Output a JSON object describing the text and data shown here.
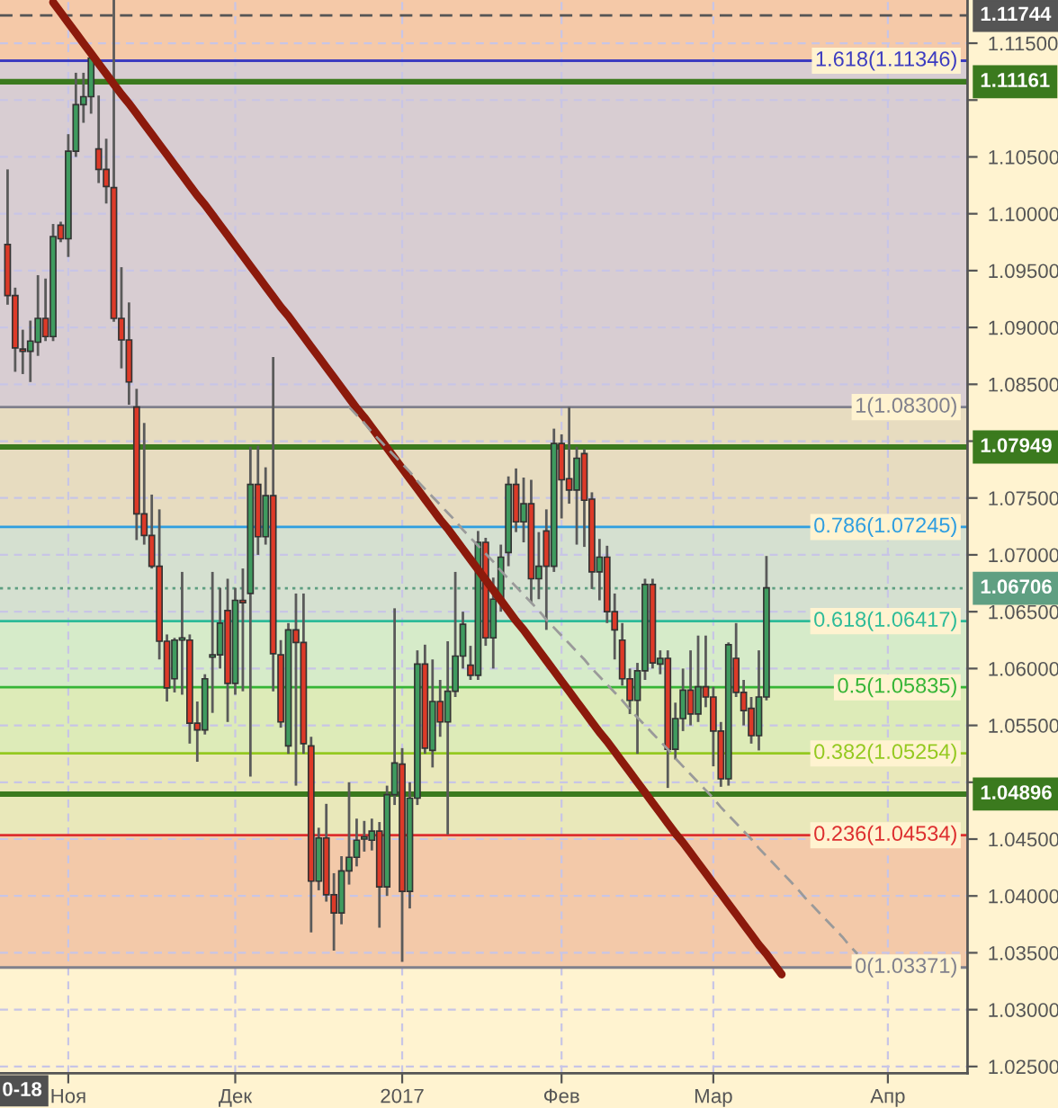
{
  "chart_data": {
    "type": "candlestick",
    "categories": [
      null,
      null,
      null,
      null,
      null,
      null,
      null,
      null,
      "Ноя",
      null,
      null,
      null,
      null,
      null,
      null,
      null,
      null,
      null,
      null,
      null,
      null,
      null,
      null,
      null,
      null,
      null,
      null,
      null,
      null,
      null,
      "Дек",
      null,
      null,
      null,
      null,
      null,
      null,
      null,
      null,
      null,
      null,
      null,
      null,
      null,
      null,
      null,
      null,
      null,
      null,
      null,
      null,
      null,
      "2017",
      null,
      null,
      null,
      null,
      null,
      null,
      null,
      null,
      null,
      null,
      null,
      null,
      null,
      null,
      null,
      null,
      null,
      null,
      null,
      null,
      "Фев",
      null,
      null,
      null,
      null,
      null,
      null,
      null,
      null,
      null,
      null,
      null,
      null,
      null,
      null,
      null,
      null,
      null,
      null,
      null,
      "Мар",
      null,
      null,
      null,
      null,
      null,
      null,
      null,
      null,
      null,
      null,
      null,
      null,
      null,
      null,
      null,
      null,
      null,
      null,
      null,
      null,
      null,
      null,
      "Апр",
      null,
      null,
      null,
      null,
      null,
      null,
      null,
      null,
      null,
      null
    ],
    "ohlc": [
      [
        1.0973,
        1.1039,
        1.092,
        1.0928
      ],
      [
        1.0928,
        1.0935,
        1.0861,
        1.0882
      ],
      [
        1.0881,
        1.0898,
        1.0859,
        1.0879
      ],
      [
        1.0879,
        1.0906,
        1.0852,
        1.0888
      ],
      [
        1.0887,
        1.0946,
        1.0875,
        1.0908
      ],
      [
        1.0908,
        1.0943,
        1.0888,
        1.0892
      ],
      [
        1.0892,
        1.0991,
        1.0888,
        1.098
      ],
      [
        1.099,
        1.0993,
        1.0975,
        1.0978
      ],
      [
        1.0978,
        1.107,
        1.0962,
        1.1055
      ],
      [
        1.1055,
        1.1124,
        1.105,
        1.1096
      ],
      [
        1.1096,
        1.1124,
        1.108,
        1.1103
      ],
      [
        1.1103,
        1.1138,
        1.1088,
        1.1137
      ],
      [
        1.1057,
        1.1104,
        1.1027,
        1.1039
      ],
      [
        1.1039,
        1.1066,
        1.1009,
        1.1024
      ],
      [
        1.1023,
        1.1188,
        1.0905,
        1.0908
      ],
      [
        1.0908,
        1.0953,
        1.0864,
        1.0889
      ],
      [
        1.0889,
        1.0922,
        1.0832,
        1.0852
      ],
      [
        1.083,
        1.0846,
        1.0713,
        1.0736
      ],
      [
        1.0736,
        1.0816,
        1.0709,
        1.0717
      ],
      [
        1.0717,
        1.0753,
        1.0688,
        1.069
      ],
      [
        1.069,
        1.074,
        1.0608,
        1.0624
      ],
      [
        1.0624,
        1.063,
        1.0571,
        1.0583
      ],
      [
        1.0591,
        1.0627,
        1.0579,
        1.0625
      ],
      [
        1.0625,
        1.0685,
        1.0577,
        1.0627
      ],
      [
        1.0625,
        1.063,
        1.0534,
        1.0552
      ],
      [
        1.0552,
        1.0571,
        1.0518,
        1.0546
      ],
      [
        1.0546,
        1.0595,
        1.0542,
        1.0591
      ],
      [
        1.061,
        1.0685,
        1.0561,
        1.0612
      ],
      [
        1.0612,
        1.0671,
        1.06,
        1.064
      ],
      [
        1.0651,
        1.0679,
        1.0553,
        1.0587
      ],
      [
        1.0587,
        1.0671,
        1.0577,
        1.066
      ],
      [
        1.066,
        1.0688,
        1.058,
        1.0658
      ],
      [
        1.0666,
        1.0795,
        1.0505,
        1.0762
      ],
      [
        1.0762,
        1.0796,
        1.07,
        1.0716
      ],
      [
        1.0716,
        1.0777,
        1.0709,
        1.0752
      ],
      [
        1.0752,
        1.0874,
        1.058,
        1.0613
      ],
      [
        1.0612,
        1.0625,
        1.0548,
        1.0553
      ],
      [
        1.0532,
        1.064,
        1.0525,
        1.0634
      ],
      [
        1.0634,
        1.0666,
        1.0497,
        1.0623
      ],
      [
        1.0623,
        1.0666,
        1.0525,
        1.0534
      ],
      [
        1.0532,
        1.054,
        1.0368,
        1.0413
      ],
      [
        1.0413,
        1.046,
        1.0405,
        1.0451
      ],
      [
        1.0451,
        1.0481,
        1.0395,
        1.0401
      ],
      [
        1.0401,
        1.042,
        1.0352,
        1.0385
      ],
      [
        1.0385,
        1.0435,
        1.0375,
        1.0422
      ],
      [
        1.0422,
        1.05,
        1.041,
        1.0434
      ],
      [
        1.0434,
        1.0468,
        1.0426,
        1.0449
      ],
      [
        1.045,
        1.0466,
        1.0439,
        1.0452
      ],
      [
        1.0449,
        1.0468,
        1.044,
        1.0457
      ],
      [
        1.0457,
        1.0465,
        1.0372,
        1.0408
      ],
      [
        1.0408,
        1.0497,
        1.04,
        1.0489
      ],
      [
        1.0489,
        1.0653,
        1.048,
        1.0517
      ],
      [
        1.0516,
        1.053,
        1.0342,
        1.0404
      ],
      [
        1.0404,
        1.05,
        1.0389,
        1.0486
      ],
      [
        1.0486,
        1.0616,
        1.048,
        1.0604
      ],
      [
        1.0604,
        1.0621,
        1.0525,
        1.053
      ],
      [
        1.0528,
        1.0608,
        1.0513,
        1.0571
      ],
      [
        1.0571,
        1.059,
        1.054,
        1.0553
      ],
      [
        1.0553,
        1.0624,
        1.0454,
        1.058
      ],
      [
        1.058,
        1.0685,
        1.0575,
        1.0611
      ],
      [
        1.0611,
        1.065,
        1.06,
        1.0639
      ],
      [
        1.0603,
        1.062,
        1.059,
        1.0594
      ],
      [
        1.0594,
        1.0721,
        1.059,
        1.0711
      ],
      [
        1.0711,
        1.0715,
        1.062,
        1.0627
      ],
      [
        1.0627,
        1.068,
        1.06,
        1.0661
      ],
      [
        1.0661,
        1.0709,
        1.065,
        1.0698
      ],
      [
        1.0702,
        1.0769,
        1.069,
        1.0762
      ],
      [
        1.0762,
        1.0776,
        1.072,
        1.0729
      ],
      [
        1.0729,
        1.0768,
        1.0711,
        1.0745
      ],
      [
        1.0745,
        1.0766,
        1.0658,
        1.0679
      ],
      [
        1.0679,
        1.072,
        1.0661,
        1.069
      ],
      [
        1.0721,
        1.074,
        1.0634,
        1.069
      ],
      [
        1.069,
        1.0811,
        1.0685,
        1.0798
      ],
      [
        1.0798,
        1.0806,
        1.0732,
        1.0766
      ],
      [
        1.0767,
        1.083,
        1.0745,
        1.0757
      ],
      [
        1.0757,
        1.0795,
        1.0709,
        1.0785
      ],
      [
        1.0789,
        1.0793,
        1.0707,
        1.0748
      ],
      [
        1.0749,
        1.0755,
        1.067,
        1.0685
      ],
      [
        1.0685,
        1.0714,
        1.066,
        1.0698
      ],
      [
        1.0698,
        1.0708,
        1.064,
        1.065
      ],
      [
        1.065,
        1.0666,
        1.0608,
        1.0634
      ],
      [
        1.0625,
        1.064,
        1.0585,
        1.0591
      ],
      [
        1.0591,
        1.06,
        1.056,
        1.0572
      ],
      [
        1.0572,
        1.0605,
        1.0525,
        1.0598
      ],
      [
        1.0598,
        1.0679,
        1.059,
        1.0674
      ],
      [
        1.0674,
        1.0679,
        1.06,
        1.0605
      ],
      [
        1.0604,
        1.0616,
        1.0595,
        1.0609
      ],
      [
        1.0609,
        1.0616,
        1.0495,
        1.0529
      ],
      [
        1.0529,
        1.057,
        1.052,
        1.0556
      ],
      [
        1.0556,
        1.06,
        1.0545,
        1.0581
      ],
      [
        1.0581,
        1.0616,
        1.055,
        1.056
      ],
      [
        1.056,
        1.0629,
        1.0553,
        1.0584
      ],
      [
        1.0584,
        1.0629,
        1.0566,
        1.0575
      ],
      [
        1.0575,
        1.0584,
        1.0514,
        1.0545
      ],
      [
        1.0545,
        1.0553,
        1.0496,
        1.0503
      ],
      [
        1.0503,
        1.0623,
        1.0497,
        1.0621
      ],
      [
        1.0609,
        1.064,
        1.0575,
        1.0579
      ],
      [
        1.0579,
        1.059,
        1.055,
        1.0563
      ],
      [
        1.0565,
        1.0575,
        1.0534,
        1.0541
      ],
      [
        1.0541,
        1.0616,
        1.0528,
        1.0575
      ],
      [
        1.0575,
        1.0699,
        1.0572,
        1.0671
      ],
      null,
      null,
      null,
      null,
      null,
      null,
      null,
      null,
      null,
      null,
      null,
      null,
      null,
      null,
      null,
      null,
      null,
      null,
      null,
      null,
      null,
      null,
      null,
      null,
      null,
      null
    ],
    "colors": [
      "#dd3a28",
      "#dd3a28",
      "#dd3a28",
      "#3f9b5f",
      "#3f9b5f",
      "#dd3a28",
      "#3f9b5f",
      "#dd3a28",
      "#3f9b5f",
      "#3f9b5f",
      "#3f9b5f",
      "#3f9b5f",
      "#dd3a28",
      "#dd3a28",
      "#dd3a28",
      "#dd3a28",
      "#dd3a28",
      "#dd3a28",
      "#dd3a28",
      "#dd3a28",
      "#dd3a28",
      "#dd3a28",
      "#3f9b5f",
      "#3f9b5f",
      "#dd3a28",
      "#dd3a28",
      "#3f9b5f",
      "#3f9b5f",
      "#3f9b5f",
      "#dd3a28",
      "#3f9b5f",
      "#dd3a28",
      "#3f9b5f",
      "#dd3a28",
      "#3f9b5f",
      "#dd3a28",
      "#dd3a28",
      "#3f9b5f",
      "#dd3a28",
      "#dd3a28",
      "#dd3a28",
      "#3f9b5f",
      "#dd3a28",
      "#dd3a28",
      "#3f9b5f",
      "#3f9b5f",
      "#3f9b5f",
      "#3f9b5f",
      "#3f9b5f",
      "#dd3a28",
      "#3f9b5f",
      "#3f9b5f",
      "#dd3a28",
      "#3f9b5f",
      "#3f9b5f",
      "#dd3a28",
      "#3f9b5f",
      "#dd3a28",
      "#3f9b5f",
      "#3f9b5f",
      "#3f9b5f",
      "#dd3a28",
      "#3f9b5f",
      "#dd3a28",
      "#3f9b5f",
      "#3f9b5f",
      "#3f9b5f",
      "#dd3a28",
      "#3f9b5f",
      "#dd3a28",
      "#3f9b5f",
      "#dd3a28",
      "#3f9b5f",
      "#dd3a28",
      "#dd3a28",
      "#3f9b5f",
      "#dd3a28",
      "#dd3a28",
      "#3f9b5f",
      "#dd3a28",
      "#dd3a28",
      "#dd3a28",
      "#dd3a28",
      "#3f9b5f",
      "#3f9b5f",
      "#dd3a28",
      "#3f9b5f",
      "#dd3a28",
      "#3f9b5f",
      "#3f9b5f",
      "#dd3a28",
      "#3f9b5f",
      "#dd3a28",
      "#dd3a28",
      "#dd3a28",
      "#3f9b5f",
      "#dd3a28",
      "#dd3a28",
      "#dd3a28",
      "#3f9b5f",
      "#3f9b5f",
      null,
      null,
      null,
      null,
      null,
      null,
      null,
      null,
      null,
      null,
      null,
      null,
      null,
      null,
      null,
      null,
      null,
      null,
      null,
      null,
      null,
      null,
      null,
      null,
      null,
      null
    ],
    "series": [
      {
        "type": "line",
        "color": "#8c1a0c",
        "line_style": "solid",
        "values": [
          null,
          null,
          null,
          null,
          null,
          null,
          1.1186,
          1.1177,
          1.1168,
          1.1159,
          1.115,
          1.1141,
          1.1132,
          1.1123,
          1.1114,
          1.1105,
          1.1097,
          1.1088,
          1.1079,
          1.107,
          1.1061,
          1.1052,
          1.1043,
          1.1034,
          1.1025,
          1.1016,
          1.1008,
          1.0999,
          1.099,
          1.0981,
          1.0972,
          1.0963,
          1.0954,
          1.0945,
          1.0936,
          1.0927,
          1.0918,
          1.091,
          1.0901,
          1.0892,
          1.0883,
          1.0874,
          1.0865,
          1.0856,
          1.0847,
          1.0838,
          1.0829,
          1.0821,
          1.0812,
          1.0803,
          1.0794,
          1.0785,
          1.0776,
          1.0767,
          1.0758,
          1.0749,
          1.074,
          1.0731,
          1.0723,
          1.0714,
          1.0705,
          1.0696,
          1.0687,
          1.0678,
          1.0669,
          1.066,
          1.0651,
          1.0642,
          1.0634,
          1.0625,
          1.0616,
          1.0607,
          1.0598,
          1.0589,
          1.058,
          1.0571,
          1.0562,
          1.0553,
          1.0544,
          1.0536,
          1.0527,
          1.0518,
          1.0509,
          1.05,
          1.0491,
          1.0482,
          1.0473,
          1.0464,
          1.0455,
          1.0447,
          1.0438,
          1.0429,
          1.042,
          1.0411,
          1.0402,
          1.0393,
          1.0384,
          1.0375,
          1.0366,
          1.0357,
          1.0349,
          1.034,
          1.0331,
          null,
          null,
          null,
          null,
          null,
          null,
          null,
          null,
          null,
          null,
          null,
          null,
          null,
          null,
          null,
          null,
          null,
          null,
          null,
          null,
          null,
          null,
          null,
          null
        ]
      },
      {
        "type": "line",
        "color": "#9a9a9a",
        "line_style": "dashed",
        "values": [
          null,
          null,
          null,
          null,
          null,
          null,
          null,
          null,
          null,
          null,
          null,
          null,
          null,
          null,
          null,
          null,
          null,
          null,
          null,
          null,
          null,
          null,
          null,
          null,
          null,
          null,
          null,
          null,
          null,
          null,
          null,
          null,
          null,
          null,
          null,
          null,
          null,
          null,
          null,
          null,
          null,
          null,
          null,
          null,
          null,
          1.083,
          1.0823,
          1.0816,
          1.0808,
          1.0801,
          1.0794,
          1.0787,
          1.078,
          1.0773,
          1.0765,
          1.0758,
          1.0751,
          1.0744,
          1.0737,
          1.073,
          1.0722,
          1.0715,
          1.0708,
          1.0701,
          1.0694,
          1.0686,
          1.0679,
          1.0672,
          1.0665,
          1.0658,
          1.0651,
          1.0643,
          1.0636,
          1.0629,
          1.0622,
          1.0615,
          1.0608,
          1.06,
          1.0593,
          1.0586,
          1.0579,
          1.0572,
          1.0564,
          1.0557,
          1.055,
          1.0543,
          1.0536,
          1.0529,
          1.0521,
          1.0514,
          1.0507,
          1.05,
          1.0493,
          1.0486,
          1.0478,
          1.0471,
          1.0464,
          1.0457,
          1.045,
          1.0442,
          1.0435,
          1.0428,
          1.0421,
          1.0414,
          1.0407,
          1.0399,
          1.0392,
          1.0385,
          1.0378,
          1.0371,
          1.0364,
          1.0356,
          1.0349,
          null,
          null,
          null,
          null,
          null,
          null,
          null,
          null,
          null,
          null,
          null,
          null,
          null,
          null
        ]
      }
    ],
    "ylim": [
      1.0244,
      1.1188
    ],
    "yticks": [
      {
        "value": 1.025,
        "label": "1.02500"
      },
      {
        "value": 1.03,
        "label": "1.03000"
      },
      {
        "value": 1.035,
        "label": "1.03500"
      },
      {
        "value": 1.04,
        "label": "1.04000"
      },
      {
        "value": 1.045,
        "label": "1.04500"
      },
      {
        "value": 1.05,
        "label": null
      },
      {
        "value": 1.055,
        "label": "1.05500"
      },
      {
        "value": 1.06,
        "label": "1.06000"
      },
      {
        "value": 1.065,
        "label": "1.06500"
      },
      {
        "value": 1.07,
        "label": "1.07000"
      },
      {
        "value": 1.075,
        "label": "1.07500"
      },
      {
        "value": 1.08,
        "label": null
      },
      {
        "value": 1.085,
        "label": "1.08500"
      },
      {
        "value": 1.09,
        "label": "1.09000"
      },
      {
        "value": 1.095,
        "label": "1.09500"
      },
      {
        "value": 1.1,
        "label": "1.10000"
      },
      {
        "value": 1.105,
        "label": "1.10500"
      },
      {
        "value": 1.11,
        "label": null
      },
      {
        "value": 1.115,
        "label": "1.11500"
      }
    ],
    "grid": true,
    "bands": [
      {
        "axis": "y",
        "from": 1.11346,
        "to": 1.1188,
        "color": "#f5c9a8"
      },
      {
        "axis": "y",
        "from": 1.083,
        "to": 1.11346,
        "color": "#d8cdd2"
      },
      {
        "axis": "y",
        "from": 1.07245,
        "to": 1.083,
        "color": "#e7dcc0"
      },
      {
        "axis": "y",
        "from": 1.06417,
        "to": 1.07245,
        "color": "#d5e0d0"
      },
      {
        "axis": "y",
        "from": 1.05835,
        "to": 1.06417,
        "color": "#d6ebc9"
      },
      {
        "axis": "y",
        "from": 1.05254,
        "to": 1.05835,
        "color": "#ddebb8"
      },
      {
        "axis": "y",
        "from": 1.04534,
        "to": 1.05254,
        "color": "#e9e8ba"
      },
      {
        "axis": "y",
        "from": 1.03371,
        "to": 1.04534,
        "color": "#f3c9a9"
      }
    ],
    "ref_lines": [
      {
        "axis": "y",
        "value": 1.11346,
        "color": "#3c3cc0",
        "line_style": "solid"
      },
      {
        "axis": "y",
        "value": 1.083,
        "color": "#80808c",
        "line_style": "solid"
      },
      {
        "axis": "y",
        "value": 1.07245,
        "color": "#2f9ee0",
        "line_style": "solid"
      },
      {
        "axis": "y",
        "value": 1.06417,
        "color": "#2dbb98",
        "line_style": "solid"
      },
      {
        "axis": "y",
        "value": 1.05835,
        "color": "#36b536",
        "line_style": "solid"
      },
      {
        "axis": "y",
        "value": 1.05254,
        "color": "#94c920",
        "line_style": "solid"
      },
      {
        "axis": "y",
        "value": 1.04534,
        "color": "#dd2f2f",
        "line_style": "solid"
      },
      {
        "axis": "y",
        "value": 1.03371,
        "color": "#80808c",
        "line_style": "solid"
      },
      {
        "axis": "y",
        "value": 1.11744,
        "label": "1.11744",
        "color": "#555555",
        "line_style": "dashed"
      },
      {
        "axis": "y",
        "value": 1.11161,
        "label": "1.11161",
        "color": "#3b7a1e",
        "line_style": "solid"
      },
      {
        "axis": "y",
        "value": 1.07949,
        "label": "1.07949",
        "color": "#3b7a1e",
        "line_style": "solid"
      },
      {
        "axis": "y",
        "value": 1.06706,
        "label": "1.06706",
        "color": "#5f9f82",
        "line_style": "dotted"
      },
      {
        "axis": "y",
        "value": 1.04896,
        "label": "1.04896",
        "color": "#3b7a1e",
        "line_style": "solid"
      }
    ],
    "annotations": [
      {
        "text": "1.618(1.11346)",
        "y": 1.11346
      },
      {
        "text": "1(1.08300)",
        "y": 1.083
      },
      {
        "text": "0.786(1.07245)",
        "y": 1.07245
      },
      {
        "text": "0.618(1.06417)",
        "y": 1.06417
      },
      {
        "text": "0.5(1.05835)",
        "y": 1.05835
      },
      {
        "text": "0.382(1.05254)",
        "y": 1.05254
      },
      {
        "text": "0.236(1.04534)",
        "y": 1.04534
      },
      {
        "text": "0(1.03371)",
        "y": 1.03371
      },
      "0-18"
    ]
  }
}
